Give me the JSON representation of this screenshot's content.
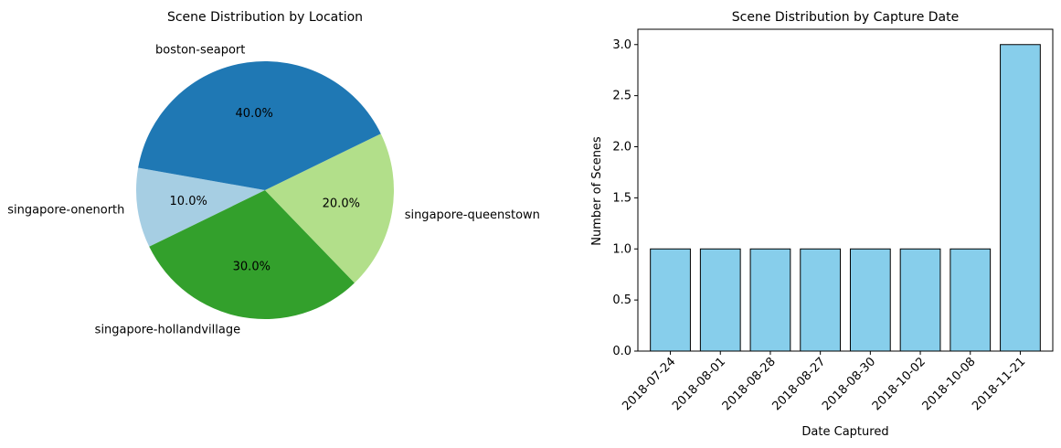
{
  "chart_data": [
    {
      "type": "pie",
      "title": "Scene Distribution by Location",
      "labels": [
        "singapore-onenorth",
        "singapore-hollandvillage",
        "singapore-queenstown",
        "boston-seaport"
      ],
      "values": [
        10.0,
        30.0,
        20.0,
        40.0
      ],
      "pct_labels": [
        "10.0%",
        "30.0%",
        "20.0%",
        "40.0%"
      ],
      "colors": [
        "#a6cee3",
        "#33a02c",
        "#b2df8a",
        "#1f78b4"
      ]
    },
    {
      "type": "bar",
      "title": "Scene Distribution by Capture Date",
      "xlabel": "Date Captured",
      "ylabel": "Number of Scenes",
      "categories": [
        "2018-07-24",
        "2018-08-01",
        "2018-08-28",
        "2018-08-27",
        "2018-08-30",
        "2018-10-02",
        "2018-10-08",
        "2018-11-21"
      ],
      "values": [
        1,
        1,
        1,
        1,
        1,
        1,
        1,
        3
      ],
      "ylim": [
        0,
        3.15
      ],
      "yticks": [
        "0.0",
        "0.5",
        "1.0",
        "1.5",
        "2.0",
        "2.5",
        "3.0"
      ],
      "bar_color": "#87ceeb",
      "edge_color": "#000000",
      "grid": false
    }
  ]
}
